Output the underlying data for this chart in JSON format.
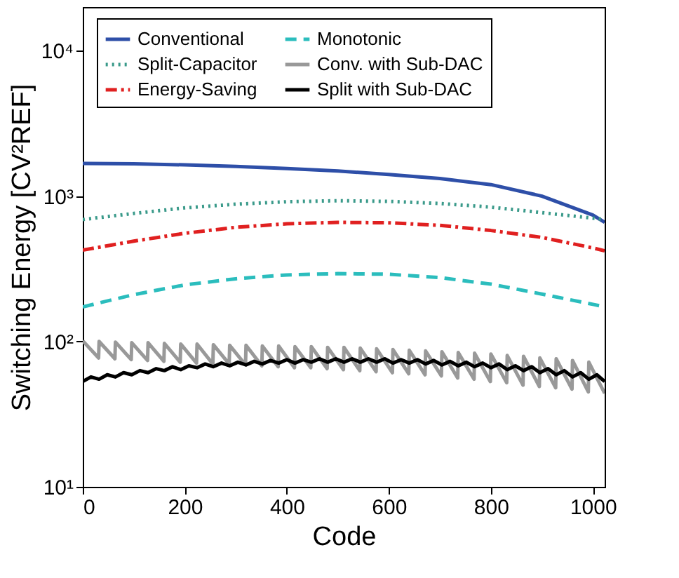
{
  "chart_data": {
    "type": "line",
    "xlabel": "Code",
    "ylabel": "Switching Energy [CV²REF]",
    "xlim": [
      0,
      1023
    ],
    "xticks": [
      0,
      200,
      400,
      600,
      800,
      1000
    ],
    "ylim": [
      10,
      20000
    ],
    "yticks": [
      {
        "value": 10,
        "label": "10¹"
      },
      {
        "value": 100,
        "label": "10²"
      },
      {
        "value": 1000,
        "label": "10³"
      },
      {
        "value": 10000,
        "label": "10⁴"
      }
    ],
    "log": true,
    "grid": false,
    "legend": "top",
    "marker": "none",
    "series": [
      {
        "name": "Conventional",
        "color": "#2e4fa8",
        "line_style": "solid",
        "x": [
          0,
          100,
          200,
          300,
          400,
          500,
          600,
          700,
          800,
          900,
          1000,
          1023
        ],
        "values": [
          1680,
          1670,
          1640,
          1600,
          1550,
          1490,
          1410,
          1320,
          1200,
          1000,
          740,
          660
        ]
      },
      {
        "name": "Split-Capacitor",
        "color": "#3a9a8a",
        "line_style": "dotted",
        "x": [
          0,
          100,
          200,
          300,
          400,
          500,
          600,
          700,
          800,
          900,
          1000,
          1023
        ],
        "values": [
          690,
          760,
          830,
          880,
          915,
          930,
          920,
          890,
          840,
          770,
          705,
          690
        ]
      },
      {
        "name": "Energy-Saving",
        "color": "#e02020",
        "line_style": "dashdot",
        "x": [
          0,
          100,
          200,
          300,
          400,
          500,
          600,
          700,
          800,
          900,
          1000,
          1023
        ],
        "values": [
          425,
          490,
          555,
          610,
          645,
          660,
          655,
          630,
          580,
          520,
          440,
          420
        ]
      },
      {
        "name": "Monotonic",
        "color": "#2bbdbd",
        "line_style": "dashed",
        "x": [
          0,
          100,
          200,
          300,
          400,
          500,
          600,
          700,
          800,
          900,
          1000,
          1023
        ],
        "values": [
          173,
          210,
          245,
          270,
          287,
          293,
          290,
          275,
          248,
          212,
          180,
          173
        ]
      },
      {
        "name": "Conv. with Sub-DAC",
        "color": "#999999",
        "line_style": "solid",
        "x": [
          0,
          31,
          32,
          63,
          64,
          95,
          96,
          127,
          128,
          159,
          160,
          191,
          192,
          223,
          224,
          255,
          256,
          287,
          288,
          319,
          320,
          351,
          352,
          383,
          384,
          415,
          416,
          447,
          448,
          479,
          480,
          511,
          512,
          543,
          544,
          575,
          576,
          607,
          608,
          639,
          640,
          671,
          672,
          703,
          704,
          735,
          736,
          767,
          768,
          799,
          800,
          831,
          832,
          863,
          864,
          895,
          896,
          927,
          928,
          959,
          960,
          991,
          992,
          1023
        ],
        "values": [
          101,
          77,
          100,
          76,
          99,
          75,
          98,
          74,
          98,
          73,
          97,
          72,
          96,
          71,
          96,
          70,
          95,
          70,
          94,
          69,
          94,
          68,
          93,
          67,
          93,
          66,
          92,
          66,
          92,
          65,
          91,
          64,
          91,
          63,
          90,
          62,
          89,
          61,
          88,
          60,
          87,
          59,
          86,
          58,
          85,
          56,
          84,
          55,
          83,
          53,
          82,
          52,
          80,
          50,
          79,
          49,
          77,
          48,
          76,
          47,
          74,
          45,
          72,
          44
        ]
      },
      {
        "name": "Split with Sub-DAC",
        "color": "#000000",
        "line_style": "solid",
        "x": [
          0,
          16,
          32,
          48,
          64,
          80,
          96,
          112,
          128,
          144,
          160,
          176,
          192,
          208,
          224,
          240,
          256,
          272,
          288,
          304,
          320,
          336,
          352,
          368,
          384,
          400,
          416,
          432,
          448,
          464,
          480,
          496,
          512,
          528,
          544,
          560,
          576,
          592,
          608,
          624,
          640,
          656,
          672,
          688,
          704,
          720,
          736,
          752,
          768,
          784,
          800,
          816,
          832,
          848,
          864,
          880,
          896,
          912,
          928,
          944,
          960,
          976,
          992,
          1008,
          1023
        ],
        "values": [
          53,
          57,
          55,
          59,
          57,
          61,
          59,
          63,
          61,
          65,
          63,
          67,
          64,
          68,
          66,
          70,
          67,
          71,
          68,
          72,
          69,
          73,
          70,
          74,
          71,
          75,
          71,
          75,
          72,
          76,
          72,
          76,
          72,
          76,
          72,
          76,
          72,
          76,
          71,
          75,
          71,
          75,
          70,
          74,
          69,
          73,
          68,
          72,
          67,
          71,
          66,
          70,
          64,
          68,
          63,
          67,
          61,
          65,
          59,
          63,
          57,
          61,
          55,
          59,
          53
        ]
      }
    ]
  }
}
